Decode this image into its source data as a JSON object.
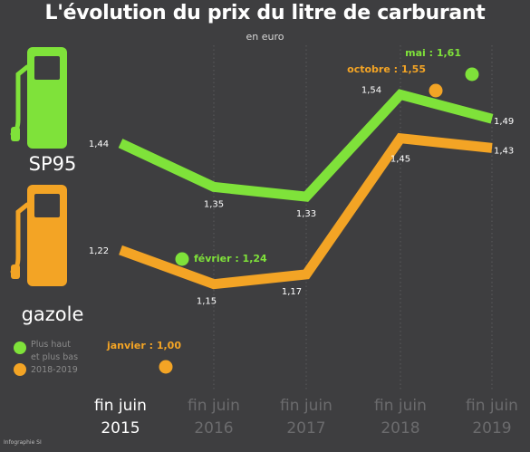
{
  "title": "L'évolution du prix du litre de carburant",
  "subtitle": "en euro",
  "credit": "Infographie SI",
  "colors": {
    "background": "#3e3e40",
    "sp95": "#7fe23a",
    "gazole": "#f3a425",
    "grid": "#5a5a5c",
    "text": "#ffffff"
  },
  "icons": {
    "sp95": "fuel-pump-icon",
    "gazole": "fuel-pump-icon"
  },
  "legend": {
    "sp95_label": "SP95",
    "gazole_label": "gazole",
    "dot_note_line1": "Plus haut",
    "dot_note_line2": "et plus bas",
    "dot_note_line3": "2018-2019"
  },
  "chart_data": {
    "type": "line",
    "categories": [
      {
        "line1": "fin juin",
        "line2": "2015"
      },
      {
        "line1": "fin juin",
        "line2": "2016"
      },
      {
        "line1": "fin juin",
        "line2": "2017"
      },
      {
        "line1": "fin juin",
        "line2": "2018"
      },
      {
        "line1": "fin juin",
        "line2": "2019"
      }
    ],
    "series": [
      {
        "name": "SP95",
        "values": [
          1.44,
          1.35,
          1.33,
          1.54,
          1.49
        ],
        "labels": [
          "1,44",
          "1,35",
          "1,33",
          "1,54",
          "1,49"
        ]
      },
      {
        "name": "gazole",
        "values": [
          1.22,
          1.15,
          1.17,
          1.45,
          1.43
        ],
        "labels": [
          "1,22",
          "1,15",
          "1,17",
          "1,45",
          "1,43"
        ]
      }
    ],
    "extremes": [
      {
        "series": "SP95",
        "label": "mai : 1,61",
        "value": 1.61
      },
      {
        "series": "SP95",
        "label": "février : 1,24",
        "value": 1.24
      },
      {
        "series": "gazole",
        "label": "octobre : 1,55",
        "value": 1.55
      },
      {
        "series": "gazole",
        "label": "janvier : 1,00",
        "value": 1.0
      }
    ],
    "ylim": [
      0.95,
      1.66
    ],
    "grid": "vertical"
  }
}
